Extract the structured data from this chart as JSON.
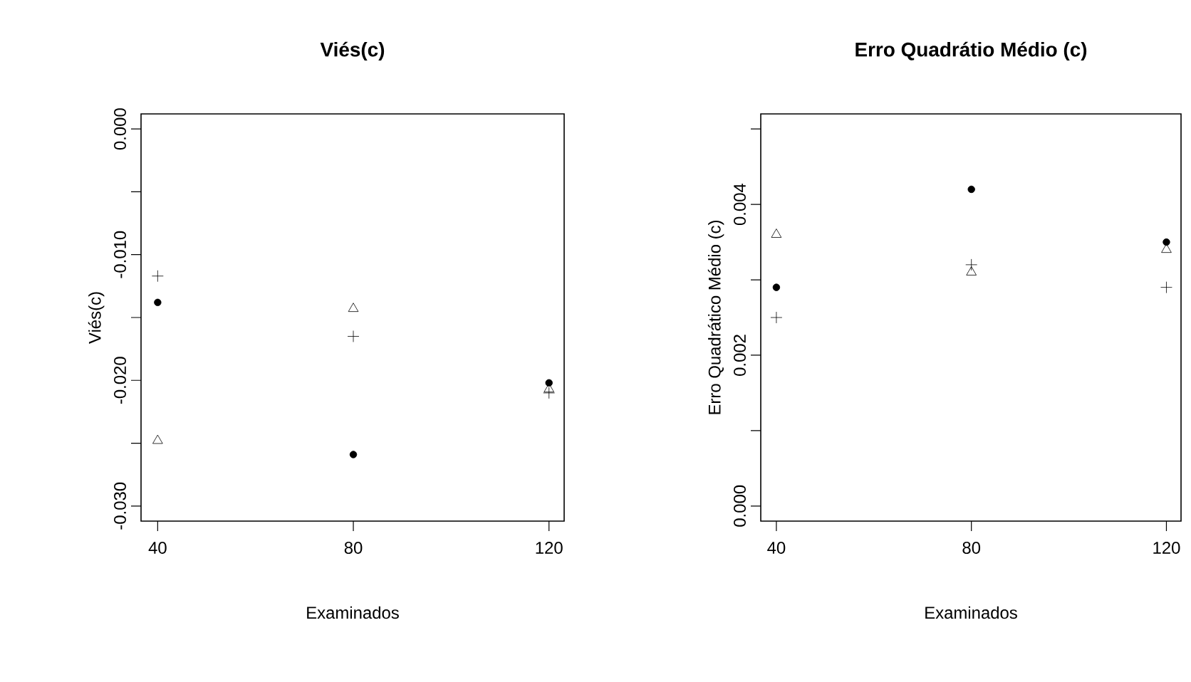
{
  "chart_data": [
    {
      "type": "scatter",
      "title": "Viés(c)",
      "xlabel": "Examinados",
      "ylabel": "Viés(c)",
      "x": [
        40,
        80,
        120
      ],
      "xlim": [
        36.6,
        123.1
      ],
      "xticks": [
        40,
        80,
        120
      ],
      "ylim": [
        -0.0312,
        0.0012
      ],
      "yticks": [
        {
          "value": -0.03,
          "label": "-0.030"
        },
        {
          "value": -0.025,
          "label": null
        },
        {
          "value": -0.02,
          "label": "-0.020"
        },
        {
          "value": -0.015,
          "label": null
        },
        {
          "value": -0.01,
          "label": "-0.010"
        },
        {
          "value": -0.005,
          "label": null
        },
        {
          "value": 0.0,
          "label": "0.000"
        }
      ],
      "series": [
        {
          "color": "#000000",
          "marker": "circle",
          "values": [
            -0.0138,
            -0.0259,
            -0.0202
          ]
        },
        {
          "color": "#000000",
          "marker": "cross",
          "values": [
            -0.0117,
            -0.0165,
            -0.021
          ]
        },
        {
          "color": "#000000",
          "marker": "triangle",
          "values": [
            -0.0248,
            -0.0143,
            -0.0207
          ]
        }
      ]
    },
    {
      "type": "scatter",
      "title": "Erro Quadrátio Médio (c)",
      "xlabel": "Examinados",
      "ylabel": "Erro Quadrático Médio (c)",
      "x": [
        40,
        80,
        120
      ],
      "xlim": [
        36.8,
        123.0
      ],
      "xticks": [
        40,
        80,
        120
      ],
      "ylim": [
        -0.0002,
        0.0052
      ],
      "yticks": [
        {
          "value": 0.0,
          "label": "0.000"
        },
        {
          "value": 0.001,
          "label": null
        },
        {
          "value": 0.002,
          "label": "0.002"
        },
        {
          "value": 0.003,
          "label": null
        },
        {
          "value": 0.004,
          "label": "0.004"
        },
        {
          "value": 0.005,
          "label": null
        }
      ],
      "series": [
        {
          "color": "#000000",
          "marker": "circle",
          "values": [
            0.0029,
            0.0042,
            0.0035
          ]
        },
        {
          "color": "#000000",
          "marker": "cross",
          "values": [
            0.0025,
            0.0032,
            0.0029
          ]
        },
        {
          "color": "#000000",
          "marker": "triangle",
          "values": [
            0.0036,
            0.0031,
            0.0034
          ]
        }
      ]
    }
  ]
}
